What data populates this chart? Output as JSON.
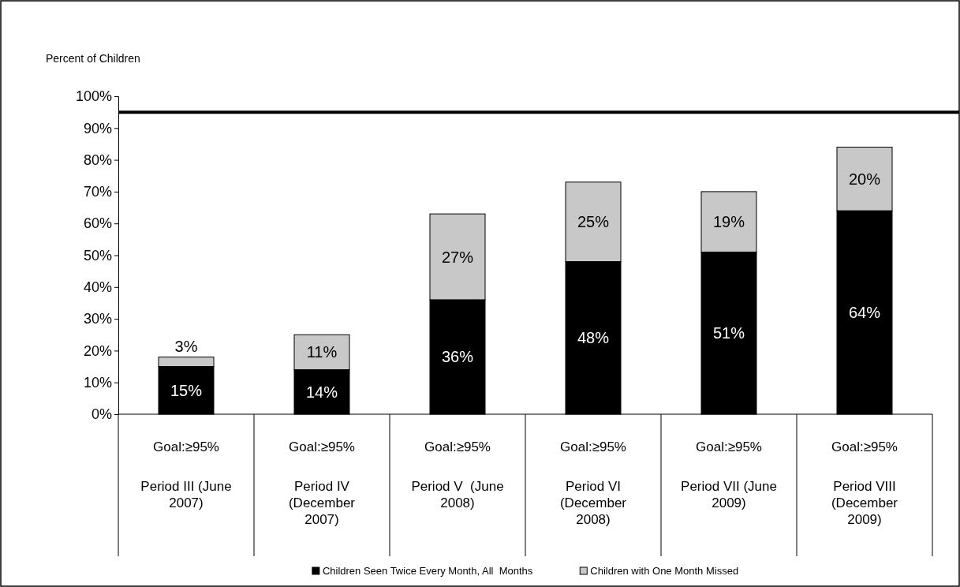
{
  "chart_data": {
    "type": "bar",
    "stacked": true,
    "ylabel": "Percent of Children",
    "categories": [
      "Period III (June 2007)",
      "Period IV (December 2007)",
      "Period V  (June 2008)",
      "Period VI (December 2008)",
      "Period VII (June 2009)",
      "Period VIII (December 2009)"
    ],
    "series": [
      {
        "name": "Children Seen Twice Every Month, All  Months",
        "color": "#000000",
        "values": [
          15,
          14,
          36,
          48,
          51,
          64
        ],
        "value_labels": [
          "15%",
          "14%",
          "36%",
          "48%",
          "51%",
          "64%"
        ]
      },
      {
        "name": "Children with One Month Missed",
        "color": "#c8c8c8",
        "values": [
          3,
          11,
          27,
          25,
          19,
          20
        ],
        "value_labels": [
          "3%",
          "11%",
          "27%",
          "25%",
          "19%",
          "20%"
        ]
      }
    ],
    "ylim": [
      0,
      100
    ],
    "yticks": [
      {
        "value": 0,
        "label": "0%"
      },
      {
        "value": 10,
        "label": "10%"
      },
      {
        "value": 20,
        "label": "20%"
      },
      {
        "value": 30,
        "label": "30%"
      },
      {
        "value": 40,
        "label": "40%"
      },
      {
        "value": 50,
        "label": "50%"
      },
      {
        "value": 60,
        "label": "60%"
      },
      {
        "value": 70,
        "label": "70%"
      },
      {
        "value": 80,
        "label": "80%"
      },
      {
        "value": 90,
        "label": "90%"
      },
      {
        "value": 100,
        "label": "100%"
      }
    ],
    "ref_lines": [
      {
        "axis": "y",
        "value": 95,
        "color": "#000000"
      }
    ],
    "annotations": [
      "Goal:≥95%",
      "Goal:≥95%",
      "Goal:≥95%",
      "Goal:≥95%",
      "Goal:≥95%",
      "Goal:≥95%"
    ],
    "grid": false,
    "legend": "bottom"
  }
}
